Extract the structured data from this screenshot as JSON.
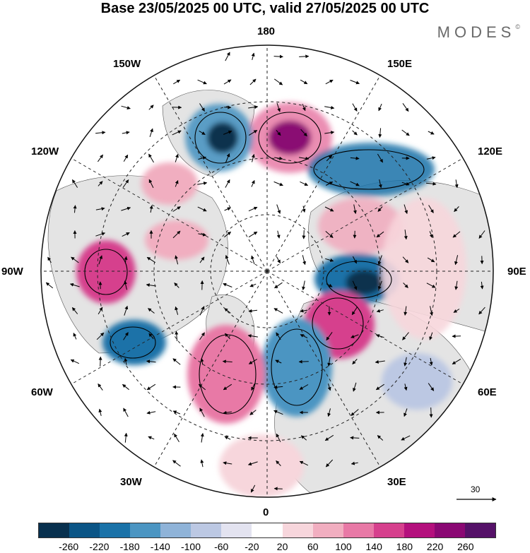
{
  "title": "Base 23/05/2025 00 UTC, valid 27/05/2025 00 UTC",
  "brand": "MODES",
  "brand_mark": "©",
  "longitude_labels": [
    "180",
    "150E",
    "120E",
    "90E",
    "60E",
    "30E",
    "0",
    "30W",
    "60W",
    "90W",
    "120W",
    "150W"
  ],
  "wind_reference_vector": "30",
  "colorbar": {
    "ticks": [
      "-260",
      "-220",
      "-180",
      "-140",
      "-100",
      "-60",
      "-20",
      "20",
      "60",
      "100",
      "140",
      "180",
      "220",
      "260"
    ],
    "colors": [
      "#08304e",
      "#0b5586",
      "#1a72a8",
      "#4b95c2",
      "#8fb3d8",
      "#bcc8e3",
      "#e3e3f0",
      "#ffffff",
      "#f7d6dc",
      "#f1aec0",
      "#e879a6",
      "#d6408d",
      "#b4107d",
      "#8a0873",
      "#551168"
    ]
  },
  "colors": {
    "land": "#e6e6e6",
    "map_border": "#111111",
    "grid": "#222222"
  }
}
